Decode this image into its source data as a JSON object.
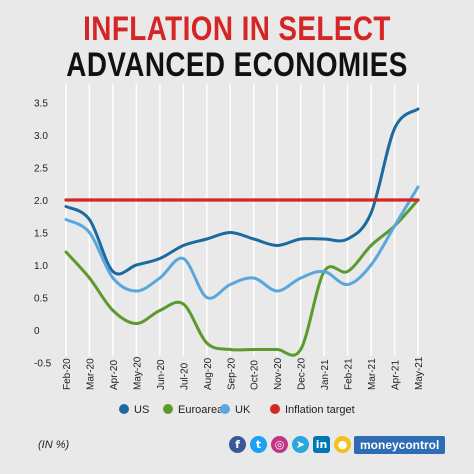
{
  "title_line1": "INFLATION IN SELECT",
  "title_line2": "ADVANCED ECONOMIES",
  "unit_note": "(IN %)",
  "brand": "moneycontrol",
  "social_icons": [
    "facebook-icon",
    "twitter-icon",
    "instagram-icon",
    "telegram-icon",
    "linkedin-icon",
    "koo-icon"
  ],
  "chart_data": {
    "type": "line",
    "x": [
      "Feb-20",
      "Mar-20",
      "Apr-20",
      "May-20",
      "Jun-20",
      "Jul-20",
      "Aug-20",
      "Sep-20",
      "Oct-20",
      "Nov-20",
      "Dec-20",
      "Jan-21",
      "Feb-21",
      "Mar-21",
      "Apr-21",
      "May-21"
    ],
    "yticks": [
      "3.5",
      "3.0",
      "2.5",
      "2.0",
      "1.5",
      "1.0",
      "0.5",
      "0",
      "-0.5"
    ],
    "ylim": [
      -0.5,
      3.5
    ],
    "grid": "vertical",
    "legend_position": "bottom",
    "series": [
      {
        "name": "US",
        "color": "#1b6aa0",
        "values": [
          1.9,
          1.7,
          0.9,
          1.0,
          1.1,
          1.3,
          1.4,
          1.5,
          1.4,
          1.3,
          1.4,
          1.4,
          1.4,
          1.8,
          3.1,
          3.4
        ]
      },
      {
        "name": "Euroarea",
        "color": "#5c9a2e",
        "values": [
          1.2,
          0.8,
          0.3,
          0.1,
          0.3,
          0.4,
          -0.2,
          -0.3,
          -0.3,
          -0.3,
          -0.3,
          0.9,
          0.9,
          1.3,
          1.6,
          2.0
        ]
      },
      {
        "name": "UK",
        "color": "#5aa7dd",
        "values": [
          1.7,
          1.5,
          0.8,
          0.6,
          0.8,
          1.1,
          0.5,
          0.7,
          0.8,
          0.6,
          0.8,
          0.9,
          0.7,
          1.0,
          1.6,
          2.2
        ]
      },
      {
        "name": "Inflation target",
        "color": "#d62525",
        "values": [
          2.0,
          2.0,
          2.0,
          2.0,
          2.0,
          2.0,
          2.0,
          2.0,
          2.0,
          2.0,
          2.0,
          2.0,
          2.0,
          2.0,
          2.0,
          2.0
        ]
      }
    ]
  }
}
